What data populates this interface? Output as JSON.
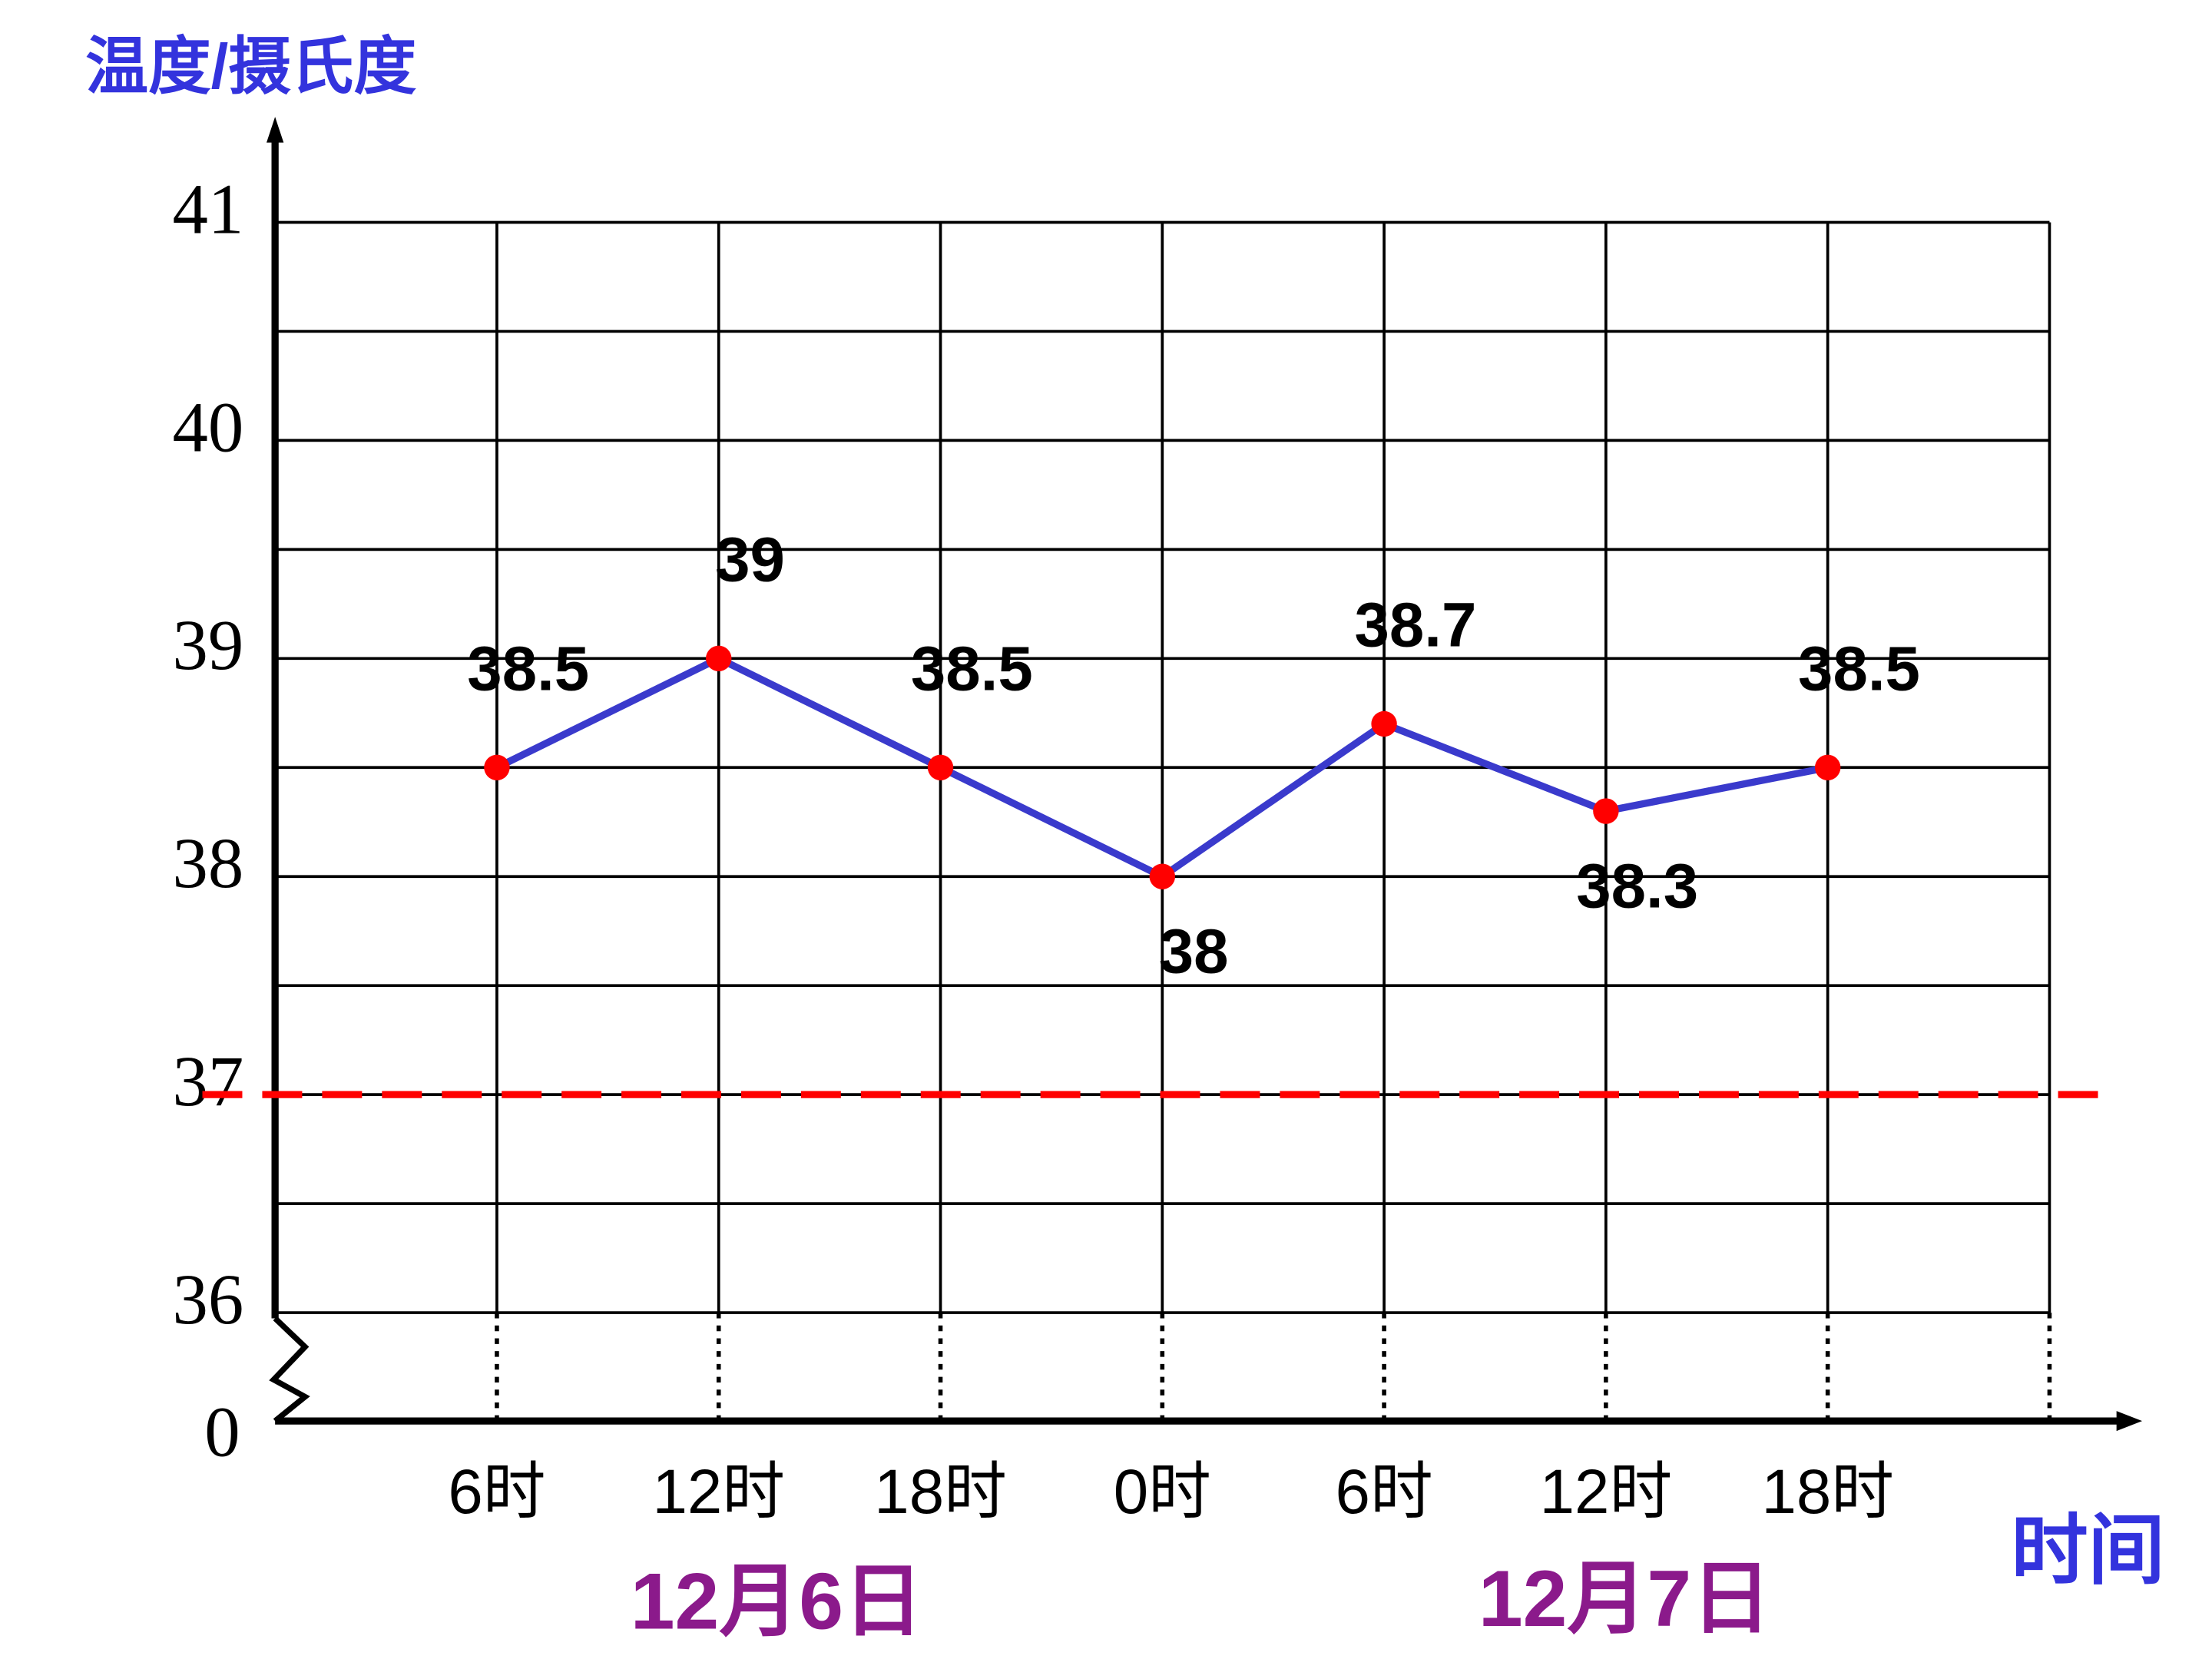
{
  "chart_data": {
    "type": "line",
    "y_axis_label": "温度/摄氏度",
    "x_axis_label": "时间",
    "categories": [
      "6时",
      "12时",
      "18时",
      "0时",
      "6时",
      "12时",
      "18时"
    ],
    "groups": [
      "12月6日",
      "12月7日"
    ],
    "series": [
      {
        "color": "#3a3acc",
        "marker_color": "#ff0000",
        "values": [
          38.5,
          39,
          38.5,
          38,
          38.7,
          38.3,
          38.5
        ],
        "label_position": [
          "above",
          "above",
          "above",
          "below",
          "above",
          "below",
          "above"
        ]
      }
    ],
    "ylim": [
      36,
      41
    ],
    "yticks": [
      36,
      37,
      38,
      39,
      40,
      41
    ],
    "axis_break_tick": 0,
    "reference_line": {
      "value": 37,
      "color": "#ff0000"
    },
    "grid": true
  }
}
